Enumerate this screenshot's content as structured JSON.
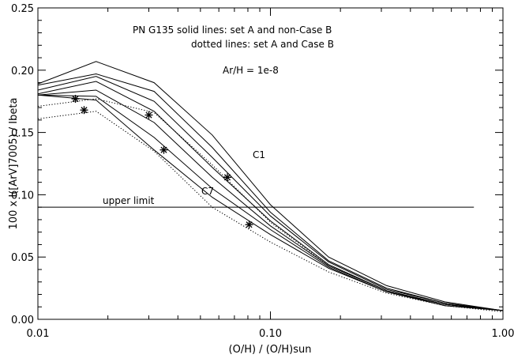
{
  "chart_data": {
    "type": "line",
    "xscale": "log",
    "xlim": [
      0.01,
      1.0
    ],
    "ylim": [
      0.0,
      0.25
    ],
    "xlabel": "(O/H) / (O/H)sun",
    "ylabel": "100 x I([ArV]7005) / Ibeta",
    "x_ticks": [
      {
        "value": 0.01,
        "label": "0.01"
      },
      {
        "value": 0.1,
        "label": "0.10"
      },
      {
        "value": 1.0,
        "label": "1.00"
      }
    ],
    "y_ticks": [
      {
        "value": 0.0,
        "label": "0.00"
      },
      {
        "value": 0.05,
        "label": "0.05"
      },
      {
        "value": 0.1,
        "label": "0.10"
      },
      {
        "value": 0.15,
        "label": "0.15"
      },
      {
        "value": 0.2,
        "label": "0.20"
      },
      {
        "value": 0.25,
        "label": "0.25"
      }
    ],
    "annotations": {
      "line1": "PN G135  solid lines: set A and non-Case B",
      "line2": "dotted lines: set A and Case B",
      "abundance": "Ar/H = 1e-8",
      "c1": "C1",
      "c7": "C7",
      "upper_limit": "upper limit"
    },
    "upper_limit": {
      "y": 0.09,
      "x": [
        0.01,
        0.75
      ]
    },
    "solid_series": [
      {
        "x": [
          0.01,
          0.0178,
          0.0316,
          0.0562,
          0.1,
          0.178,
          0.316,
          0.562,
          1.0
        ],
        "y": [
          0.189,
          0.207,
          0.19,
          0.148,
          0.092,
          0.05,
          0.027,
          0.014,
          0.007
        ]
      },
      {
        "x": [
          0.01,
          0.0178,
          0.0316,
          0.0562,
          0.1,
          0.178,
          0.316,
          0.562,
          1.0
        ],
        "y": [
          0.188,
          0.197,
          0.183,
          0.138,
          0.086,
          0.047,
          0.025,
          0.013,
          0.007
        ]
      },
      {
        "x": [
          0.01,
          0.0178,
          0.0316,
          0.0562,
          0.1,
          0.178,
          0.316,
          0.562,
          1.0
        ],
        "y": [
          0.184,
          0.195,
          0.175,
          0.13,
          0.083,
          0.046,
          0.024,
          0.013,
          0.007
        ]
      },
      {
        "x": [
          0.01,
          0.0178,
          0.0316,
          0.0562,
          0.1,
          0.178,
          0.316,
          0.562,
          1.0
        ],
        "y": [
          0.181,
          0.191,
          0.167,
          0.122,
          0.079,
          0.044,
          0.023,
          0.012,
          0.007
        ]
      },
      {
        "x": [
          0.01,
          0.0178,
          0.0316,
          0.0562,
          0.1,
          0.178,
          0.316,
          0.562,
          1.0
        ],
        "y": [
          0.18,
          0.184,
          0.158,
          0.114,
          0.075,
          0.043,
          0.023,
          0.012,
          0.007
        ]
      },
      {
        "x": [
          0.01,
          0.0178,
          0.0316,
          0.0562,
          0.1,
          0.178,
          0.316,
          0.562,
          1.0
        ],
        "y": [
          0.18,
          0.179,
          0.146,
          0.105,
          0.072,
          0.042,
          0.022,
          0.012,
          0.007
        ]
      },
      {
        "x": [
          0.01,
          0.0178,
          0.0316,
          0.0562,
          0.1,
          0.178,
          0.316,
          0.562,
          1.0
        ],
        "y": [
          0.18,
          0.176,
          0.136,
          0.098,
          0.068,
          0.041,
          0.022,
          0.011,
          0.007
        ]
      }
    ],
    "dotted_series": [
      {
        "x": [
          0.01,
          0.0178,
          0.0316,
          0.0562,
          0.1,
          0.178,
          0.316,
          0.562,
          1.0
        ],
        "y": [
          0.171,
          0.177,
          0.166,
          0.124,
          0.078,
          0.043,
          0.023,
          0.012,
          0.007
        ]
      },
      {
        "x": [
          0.01,
          0.0178,
          0.0316,
          0.0562,
          0.1,
          0.178,
          0.316,
          0.562,
          1.0
        ],
        "y": [
          0.161,
          0.167,
          0.135,
          0.09,
          0.062,
          0.038,
          0.021,
          0.011,
          0.006
        ]
      }
    ],
    "star_points": {
      "x": [
        0.0145,
        0.0158,
        0.03,
        0.0348,
        0.0653,
        0.081
      ],
      "y": [
        0.177,
        0.168,
        0.164,
        0.136,
        0.114,
        0.076
      ]
    }
  }
}
